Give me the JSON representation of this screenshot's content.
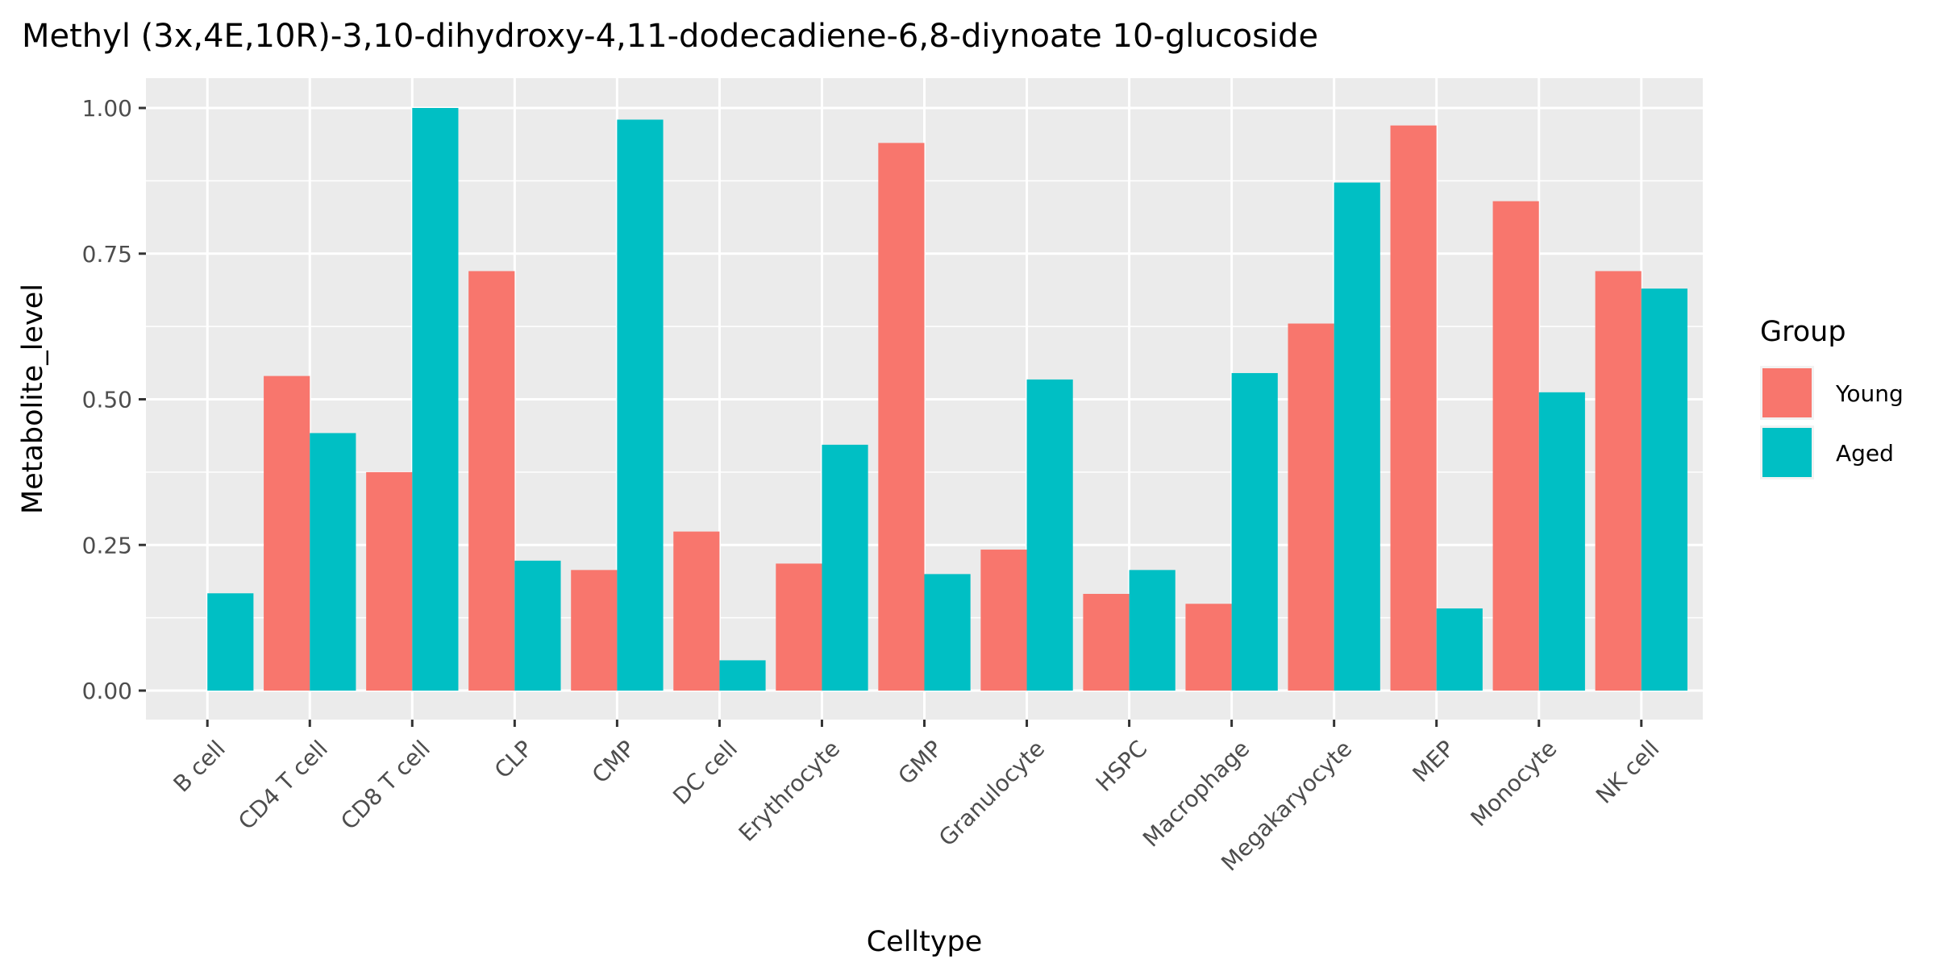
{
  "chart_data": {
    "type": "bar",
    "title": "Methyl (3x,4E,10R)-3,10-dihydroxy-4,11-dodecadiene-6,8-diynoate 10-glucoside",
    "xlabel": "Celltype",
    "ylabel": "Metabolite_level",
    "ylim": [
      0,
      1.03
    ],
    "yticks": [
      0,
      0.25,
      0.5,
      0.75,
      1.0
    ],
    "ytick_labels": [
      "0.00",
      "0.25",
      "0.50",
      "0.75",
      "1.00"
    ],
    "grid": true,
    "legend": {
      "title": "Group",
      "position": "right"
    },
    "categories": [
      "B cell",
      "CD4 T cell",
      "CD8 T cell",
      "CLP",
      "CMP",
      "DC cell",
      "Erythrocyte",
      "GMP",
      "Granulocyte",
      "HSPC",
      "Macrophage",
      "Megakaryocyte",
      "MEP",
      "Monocyte",
      "NK cell"
    ],
    "series": [
      {
        "name": "Young",
        "color": "#F8766D",
        "values": [
          0.0,
          0.54,
          0.375,
          0.72,
          0.207,
          0.273,
          0.218,
          0.94,
          0.242,
          0.166,
          0.149,
          0.63,
          0.97,
          0.84,
          0.72
        ]
      },
      {
        "name": "Aged",
        "color": "#00BFC4",
        "values": [
          0.167,
          0.442,
          1.0,
          0.223,
          0.98,
          0.052,
          0.422,
          0.2,
          0.534,
          0.207,
          0.545,
          0.872,
          0.141,
          0.512,
          0.69
        ]
      }
    ]
  }
}
